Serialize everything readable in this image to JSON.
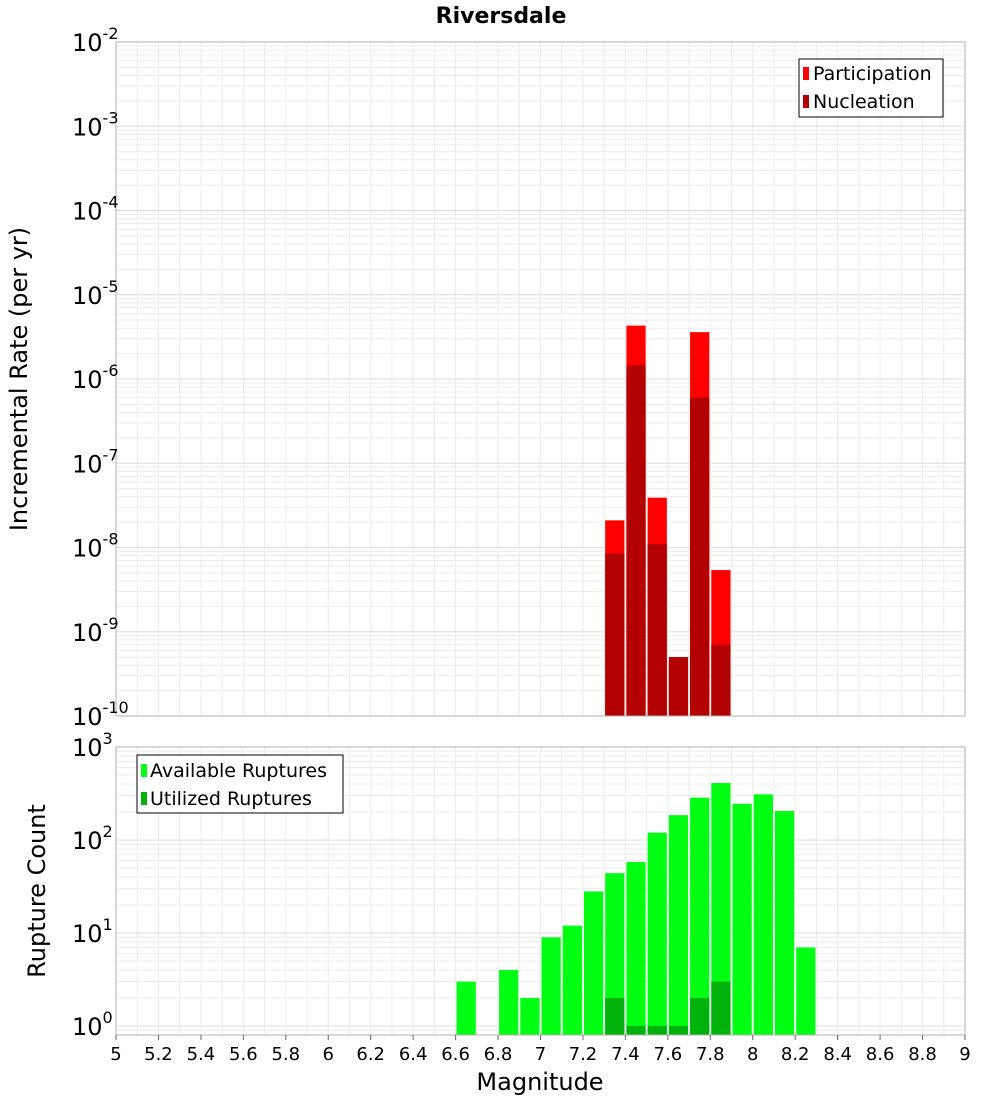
{
  "title": "Riversdale",
  "colors": {
    "participation": "#ff0000",
    "nucleation": "#b30000",
    "available": "#00ff12",
    "utilized": "#00b30c",
    "grid_minor": "#ececec",
    "grid_major": "#dcdcdc",
    "frame": "#b0b0b0"
  },
  "chart_data": [
    {
      "type": "bar",
      "title": "Riversdale",
      "xlabel": "Magnitude",
      "ylabel": "Incremental Rate (per yr)",
      "yscale": "log",
      "ylim": [
        1e-10,
        0.01
      ],
      "xlim": [
        5,
        9
      ],
      "bar_width": 0.1,
      "grid": true,
      "legend_position": "top-right",
      "ytick_exponents": [
        "-10",
        "-9",
        "-8",
        "-7",
        "-6",
        "-5",
        "-4",
        "-3",
        "-2"
      ],
      "series": [
        {
          "name": "Participation",
          "x": [
            7.35,
            7.45,
            7.55,
            7.65,
            7.75,
            7.85
          ],
          "values": [
            2.1e-08,
            4.3e-06,
            3.9e-08,
            5e-10,
            3.6e-06,
            5.4e-09
          ]
        },
        {
          "name": "Nucleation",
          "x": [
            7.35,
            7.45,
            7.55,
            7.65,
            7.75,
            7.85
          ],
          "values": [
            8.5e-09,
            1.45e-06,
            1.1e-08,
            5e-10,
            6e-07,
            7e-10
          ]
        }
      ]
    },
    {
      "type": "bar",
      "xlabel": "Magnitude",
      "ylabel": "Rupture Count",
      "yscale": "log",
      "ylim": [
        0.8,
        1000
      ],
      "xlim": [
        5,
        9
      ],
      "bar_width": 0.1,
      "grid": true,
      "legend_position": "top-left",
      "xticks": [
        "5",
        "5.2",
        "5.4",
        "5.6",
        "5.8",
        "6",
        "6.2",
        "6.4",
        "6.6",
        "6.8",
        "7",
        "7.2",
        "7.4",
        "7.6",
        "7.8",
        "8",
        "8.2",
        "8.4",
        "8.6",
        "8.8",
        "9"
      ],
      "ytick_exponents": [
        "0",
        "1",
        "2",
        "3"
      ],
      "series": [
        {
          "name": "Available Ruptures",
          "x": [
            6.65,
            6.85,
            6.95,
            7.05,
            7.15,
            7.25,
            7.35,
            7.45,
            7.55,
            7.65,
            7.75,
            7.85,
            7.95,
            8.05,
            8.15,
            8.25
          ],
          "values": [
            3,
            4,
            2,
            9,
            12,
            28,
            44,
            58,
            120,
            185,
            285,
            410,
            245,
            310,
            205,
            7
          ]
        },
        {
          "name": "Utilized Ruptures",
          "x": [
            7.35,
            7.45,
            7.55,
            7.65,
            7.75,
            7.85
          ],
          "values": [
            2,
            1,
            1,
            1,
            2,
            3
          ]
        }
      ]
    }
  ]
}
